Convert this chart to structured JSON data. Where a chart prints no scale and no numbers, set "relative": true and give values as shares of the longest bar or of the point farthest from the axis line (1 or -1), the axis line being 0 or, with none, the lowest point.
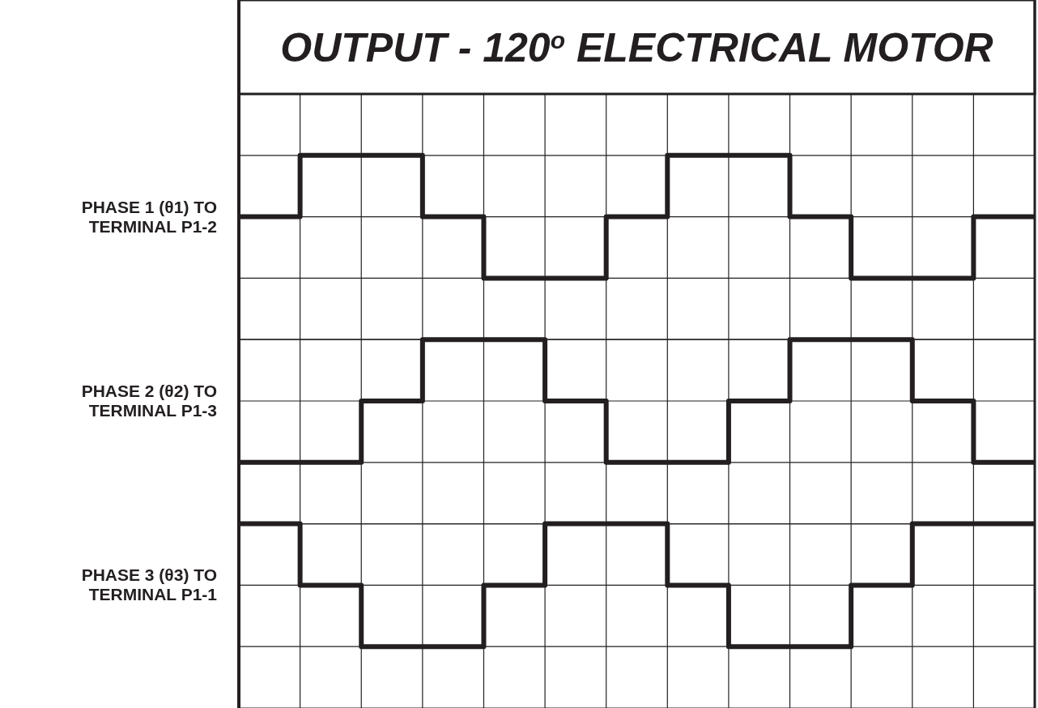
{
  "chart_data": [
    {
      "type": "step",
      "title": "OUTPUT - 120$^{o}$ ELECTRICAL  MOTOR",
      "ylabel": "PHASE 1 (θ1) TO TERMINAL P1-2",
      "relative": true,
      "grid": true,
      "categories": [
        null,
        null,
        null,
        null,
        null,
        null,
        null,
        null,
        null,
        null,
        null,
        null,
        null,
        null
      ],
      "series": [
        {
          "color": "#231f20",
          "values": [
            0.5,
            1,
            1,
            0.5,
            0,
            0,
            0.5,
            1,
            1,
            0.5,
            0,
            0,
            0.5,
            0.5
          ]
        }
      ]
    },
    {
      "type": "step",
      "ylabel": "PHASE 2 (θ2) TO TERMINAL P1-3",
      "relative": true,
      "grid": true,
      "categories": [
        null,
        null,
        null,
        null,
        null,
        null,
        null,
        null,
        null,
        null,
        null,
        null,
        null,
        null
      ],
      "series": [
        {
          "color": "#231f20",
          "values": [
            0,
            0,
            0.5,
            1,
            1,
            0.5,
            0,
            0,
            0.5,
            1,
            1,
            0.5,
            0,
            0
          ]
        }
      ]
    },
    {
      "type": "step",
      "ylabel": "PHASE 3 (θ3) TO TERMINAL P1-1",
      "relative": true,
      "grid": true,
      "categories": [
        null,
        null,
        null,
        null,
        null,
        null,
        null,
        null,
        null,
        null,
        null,
        null,
        null,
        null
      ],
      "series": [
        {
          "color": "#231f20",
          "values": [
            1,
            0.5,
            0,
            0,
            0.5,
            1,
            1,
            0.5,
            0,
            0,
            0.5,
            1,
            1,
            1
          ]
        }
      ]
    }
  ]
}
